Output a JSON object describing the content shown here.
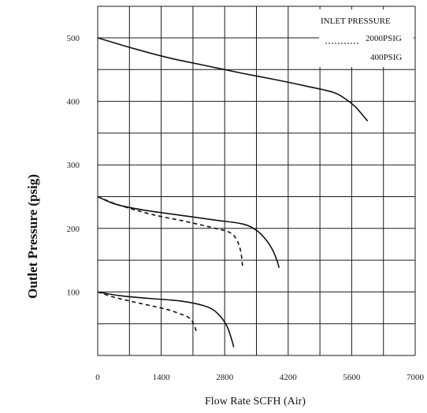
{
  "chart_data": {
    "type": "line",
    "title": "",
    "xlabel": "Flow Rate SCFH  (Air)",
    "ylabel": "Outlet Pressure (psig)",
    "xlim": [
      0,
      7000
    ],
    "ylim": [
      0,
      520
    ],
    "x_ticks": [
      0,
      1400,
      2800,
      4200,
      5600,
      7000
    ],
    "x_tick_labels": [
      "0",
      "1400",
      "2800",
      "4200",
      "5600",
      "7000"
    ],
    "y_ticks": [
      100,
      200,
      300,
      400,
      500
    ],
    "y_tick_labels": [
      "100",
      "200",
      "300",
      "400",
      "500"
    ],
    "grid": true,
    "legend": {
      "title": "INLET PRESSURE",
      "placement": "top-right",
      "entries": [
        {
          "label": "2000PSIG",
          "style": "dashed"
        },
        {
          "label": "400PSIG",
          "style": "solid"
        }
      ]
    },
    "series": [
      {
        "style": "solid",
        "x": [
          0,
          800,
          1600,
          2400,
          3200,
          4000,
          4600,
          5200,
          5500,
          5700,
          5950
        ],
        "y": [
          500,
          483,
          468,
          456,
          444,
          433,
          424,
          414,
          402,
          390,
          369
        ]
      },
      {
        "style": "solid",
        "x": [
          0,
          400,
          1000,
          1800,
          2600,
          3200,
          3500,
          3700,
          3850,
          3950,
          4000
        ],
        "y": [
          250,
          238,
          229,
          221,
          213,
          207,
          197,
          183,
          167,
          150,
          138
        ]
      },
      {
        "style": "dashed",
        "x": [
          0,
          500,
          1200,
          2000,
          2600,
          2900,
          3050,
          3150,
          3200
        ],
        "y": [
          250,
          236,
          222,
          210,
          200,
          194,
          184,
          165,
          137
        ]
      },
      {
        "style": "solid",
        "x": [
          0,
          500,
          1100,
          1800,
          2200,
          2500,
          2700,
          2850,
          2950,
          3000
        ],
        "y": [
          100,
          94,
          90,
          86,
          81,
          74,
          62,
          46,
          26,
          13
        ]
      },
      {
        "style": "dashed",
        "x": [
          0,
          400,
          1000,
          1500,
          1800,
          2000,
          2100,
          2150,
          2200
        ],
        "y": [
          100,
          91,
          81,
          73,
          66,
          60,
          52,
          43,
          34
        ]
      }
    ]
  }
}
